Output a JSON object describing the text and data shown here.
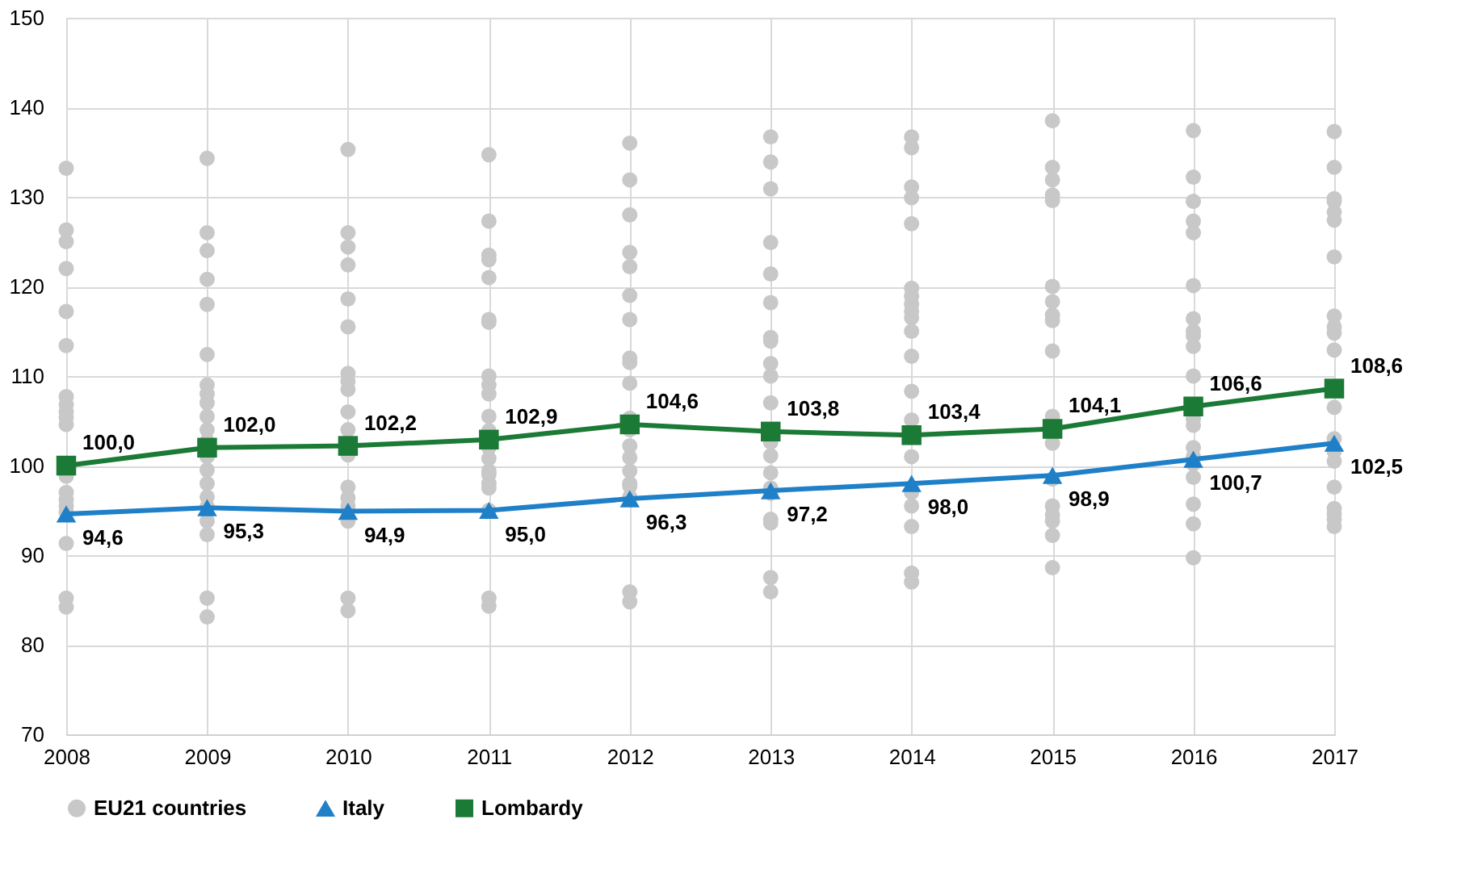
{
  "chart_data": {
    "type": "line",
    "xlim": [
      2008,
      2017
    ],
    "xticks": [
      2008,
      2009,
      2010,
      2011,
      2012,
      2013,
      2014,
      2015,
      2016,
      2017
    ],
    "ylim": [
      70,
      150
    ],
    "yticks": [
      70,
      80,
      90,
      100,
      110,
      120,
      130,
      140,
      150
    ],
    "grid": true,
    "legend": "bottom",
    "series": [
      {
        "name": "EU21 countries",
        "type": "scatter",
        "marker": "circle",
        "color": "#c8c8c8",
        "x": [
          2008,
          2008,
          2008,
          2008,
          2008,
          2008,
          2008,
          2008,
          2008,
          2008,
          2008,
          2008,
          2008,
          2008,
          2008,
          2008,
          2008,
          2008,
          2008,
          2009,
          2009,
          2009,
          2009,
          2009,
          2009,
          2009,
          2009,
          2009,
          2009,
          2009,
          2009,
          2009,
          2009,
          2009,
          2009,
          2009,
          2009,
          2009,
          2009,
          2009,
          2010,
          2010,
          2010,
          2010,
          2010,
          2010,
          2010,
          2010,
          2010,
          2010,
          2010,
          2010,
          2010,
          2010,
          2010,
          2010,
          2010,
          2010,
          2011,
          2011,
          2011,
          2011,
          2011,
          2011,
          2011,
          2011,
          2011,
          2011,
          2011,
          2011,
          2011,
          2011,
          2011,
          2011,
          2011,
          2011,
          2011,
          2011,
          2011,
          2012,
          2012,
          2012,
          2012,
          2012,
          2012,
          2012,
          2012,
          2012,
          2012,
          2012,
          2012,
          2012,
          2012,
          2012,
          2012,
          2012,
          2012,
          2012,
          2012,
          2013,
          2013,
          2013,
          2013,
          2013,
          2013,
          2013,
          2013,
          2013,
          2013,
          2013,
          2013,
          2013,
          2013,
          2013,
          2013,
          2013,
          2013,
          2013,
          2013,
          2014,
          2014,
          2014,
          2014,
          2014,
          2014,
          2014,
          2014,
          2014,
          2014,
          2014,
          2014,
          2014,
          2014,
          2014,
          2014,
          2014,
          2014,
          2014,
          2014,
          2015,
          2015,
          2015,
          2015,
          2015,
          2015,
          2015,
          2015,
          2015,
          2015,
          2015,
          2015,
          2015,
          2015,
          2015,
          2015,
          2015,
          2015,
          2016,
          2016,
          2016,
          2016,
          2016,
          2016,
          2016,
          2016,
          2016,
          2016,
          2016,
          2016,
          2016,
          2016,
          2016,
          2016,
          2016,
          2016,
          2016,
          2016,
          2017,
          2017,
          2017,
          2017,
          2017,
          2017,
          2017,
          2017,
          2017,
          2017,
          2017,
          2017,
          2017,
          2017,
          2017,
          2017,
          2017,
          2017,
          2017,
          2017
        ],
        "values": [
          133.2,
          126.3,
          125,
          122,
          117.2,
          113.4,
          107.7,
          106.8,
          106,
          105.4,
          104.6,
          98.8,
          97,
          96.2,
          95.5,
          94.8,
          91.3,
          85.2,
          84.2,
          134.3,
          126,
          124,
          120.8,
          118,
          112.4,
          109,
          108,
          107,
          105.5,
          104,
          102.7,
          101,
          99.5,
          98,
          96.5,
          95.4,
          93.8,
          92.3,
          85.2,
          83.1,
          135.3,
          126,
          124.4,
          122.4,
          118.6,
          115.5,
          110.3,
          109.4,
          108.5,
          106,
          104,
          101.2,
          97.6,
          96.4,
          95.5,
          93.8,
          85.2,
          83.8,
          134.7,
          127.3,
          123.5,
          123,
          121,
          116.3,
          116,
          110,
          109,
          108,
          105.5,
          103.9,
          102,
          100.8,
          99.4,
          99,
          98,
          97.5,
          95,
          85.2,
          84.3,
          136,
          131.9,
          128,
          123.8,
          122.2,
          119,
          116.3,
          112,
          111.5,
          109.2,
          105.3,
          104,
          102.2,
          100.9,
          99.4,
          98,
          97.7,
          96.5,
          85.9,
          84.8,
          136.7,
          133.9,
          130.9,
          124.9,
          121.4,
          118.2,
          114.3,
          113.9,
          111.4,
          110,
          107,
          102.6,
          101.1,
          99.2,
          97.5,
          96.9,
          94,
          93.6,
          87.5,
          85.9,
          136.7,
          135.5,
          131.1,
          129.9,
          127,
          119.8,
          118.9,
          118,
          117.2,
          116.5,
          115,
          112.2,
          108.3,
          105.1,
          101,
          97,
          95.5,
          93.2,
          88,
          87,
          138.5,
          133.3,
          131.9,
          130.2,
          129.6,
          120,
          118.3,
          116.8,
          116.2,
          112.8,
          105.5,
          102.5,
          98.5,
          95.5,
          94.5,
          93.8,
          92.2,
          88.6,
          137.4,
          132.2,
          129.5,
          127.3,
          126,
          120.1,
          116.4,
          115,
          114.5,
          113.3,
          110,
          105.2,
          104.5,
          102,
          101,
          100.2,
          98.7,
          95.7,
          93.5,
          89.7,
          137.3,
          133.3,
          129.8,
          129.5,
          128.3,
          127.4,
          123.3,
          116.7,
          114.8,
          115.5,
          112.9,
          106.5,
          103,
          101.6,
          100.5,
          97.6,
          95.2,
          94.6,
          94,
          93.2
        ]
      },
      {
        "name": "Italy",
        "marker": "triangle",
        "color": "#1f80c8",
        "x": [
          2008,
          2009,
          2010,
          2011,
          2012,
          2013,
          2014,
          2015,
          2016,
          2017
        ],
        "values": [
          94.6,
          95.3,
          94.9,
          95.0,
          96.3,
          97.2,
          98.0,
          98.9,
          100.7,
          102.5
        ],
        "value_labels": [
          "94,6",
          "95,3",
          "94,9",
          "95,0",
          "96,3",
          "97,2",
          "98,0",
          "98,9",
          "100,7",
          "102,5"
        ]
      },
      {
        "name": "Lombardy",
        "marker": "square",
        "color": "#1b7a35",
        "x": [
          2008,
          2009,
          2010,
          2011,
          2012,
          2013,
          2014,
          2015,
          2016,
          2017
        ],
        "values": [
          100.0,
          102.0,
          102.2,
          102.9,
          104.6,
          103.8,
          103.4,
          104.1,
          106.6,
          108.6
        ],
        "value_labels": [
          "100,0",
          "102,0",
          "102,2",
          "102,9",
          "104,6",
          "103,8",
          "103,4",
          "104,1",
          "106,6",
          "108,6"
        ]
      }
    ]
  }
}
